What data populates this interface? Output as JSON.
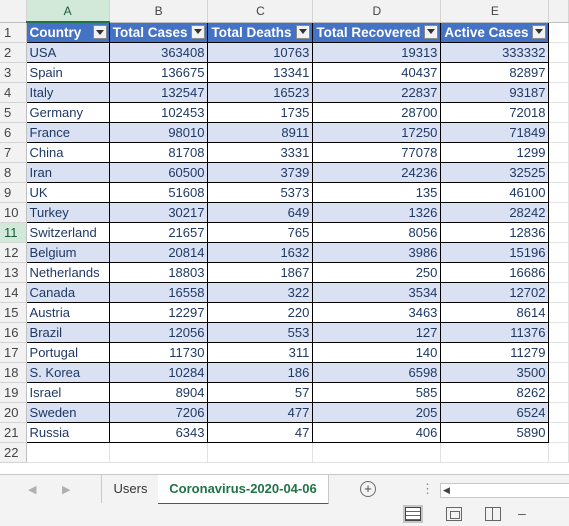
{
  "columns": [
    "A",
    "B",
    "C",
    "D",
    "E"
  ],
  "selected_column": "A",
  "selected_row": "11",
  "header": {
    "row_num": "1",
    "country": "Country",
    "total_cases": "Total Cases",
    "total_deaths": "Total Deaths",
    "total_recovered": "Total Recovered",
    "active_cases": "Active Cases"
  },
  "rows": [
    {
      "n": "2",
      "country": "USA",
      "cases": "363408",
      "deaths": "10763",
      "recovered": "19313",
      "active": "333332"
    },
    {
      "n": "3",
      "country": "Spain",
      "cases": "136675",
      "deaths": "13341",
      "recovered": "40437",
      "active": "82897"
    },
    {
      "n": "4",
      "country": "Italy",
      "cases": "132547",
      "deaths": "16523",
      "recovered": "22837",
      "active": "93187"
    },
    {
      "n": "5",
      "country": "Germany",
      "cases": "102453",
      "deaths": "1735",
      "recovered": "28700",
      "active": "72018"
    },
    {
      "n": "6",
      "country": "France",
      "cases": "98010",
      "deaths": "8911",
      "recovered": "17250",
      "active": "71849"
    },
    {
      "n": "7",
      "country": "China",
      "cases": "81708",
      "deaths": "3331",
      "recovered": "77078",
      "active": "1299"
    },
    {
      "n": "8",
      "country": "Iran",
      "cases": "60500",
      "deaths": "3739",
      "recovered": "24236",
      "active": "32525"
    },
    {
      "n": "9",
      "country": "UK",
      "cases": "51608",
      "deaths": "5373",
      "recovered": "135",
      "active": "46100"
    },
    {
      "n": "10",
      "country": "Turkey",
      "cases": "30217",
      "deaths": "649",
      "recovered": "1326",
      "active": "28242"
    },
    {
      "n": "11",
      "country": "Switzerland",
      "cases": "21657",
      "deaths": "765",
      "recovered": "8056",
      "active": "12836"
    },
    {
      "n": "12",
      "country": "Belgium",
      "cases": "20814",
      "deaths": "1632",
      "recovered": "3986",
      "active": "15196"
    },
    {
      "n": "13",
      "country": "Netherlands",
      "cases": "18803",
      "deaths": "1867",
      "recovered": "250",
      "active": "16686"
    },
    {
      "n": "14",
      "country": "Canada",
      "cases": "16558",
      "deaths": "322",
      "recovered": "3534",
      "active": "12702"
    },
    {
      "n": "15",
      "country": "Austria",
      "cases": "12297",
      "deaths": "220",
      "recovered": "3463",
      "active": "8614"
    },
    {
      "n": "16",
      "country": "Brazil",
      "cases": "12056",
      "deaths": "553",
      "recovered": "127",
      "active": "11376"
    },
    {
      "n": "17",
      "country": "Portugal",
      "cases": "11730",
      "deaths": "311",
      "recovered": "140",
      "active": "11279"
    },
    {
      "n": "18",
      "country": "S. Korea",
      "cases": "10284",
      "deaths": "186",
      "recovered": "6598",
      "active": "3500"
    },
    {
      "n": "19",
      "country": "Israel",
      "cases": "8904",
      "deaths": "57",
      "recovered": "585",
      "active": "8262"
    },
    {
      "n": "20",
      "country": "Sweden",
      "cases": "7206",
      "deaths": "477",
      "recovered": "205",
      "active": "6524"
    },
    {
      "n": "21",
      "country": "Russia",
      "cases": "6343",
      "deaths": "47",
      "recovered": "406",
      "active": "5890"
    }
  ],
  "empty_rows": [
    "22"
  ],
  "sheet_tabs": {
    "users": "Users",
    "active": "Coronavirus-2020-04-06"
  },
  "icons": {
    "add_sheet": "plus-circle-icon",
    "filter": "filter-dropdown-icon",
    "normal_view": "normal-view-icon",
    "page_layout": "page-layout-view-icon",
    "page_break": "page-break-preview-icon"
  },
  "colors": {
    "header_fill": "#4472c4",
    "band_fill": "#d9e1f2",
    "accent_green": "#217346"
  }
}
